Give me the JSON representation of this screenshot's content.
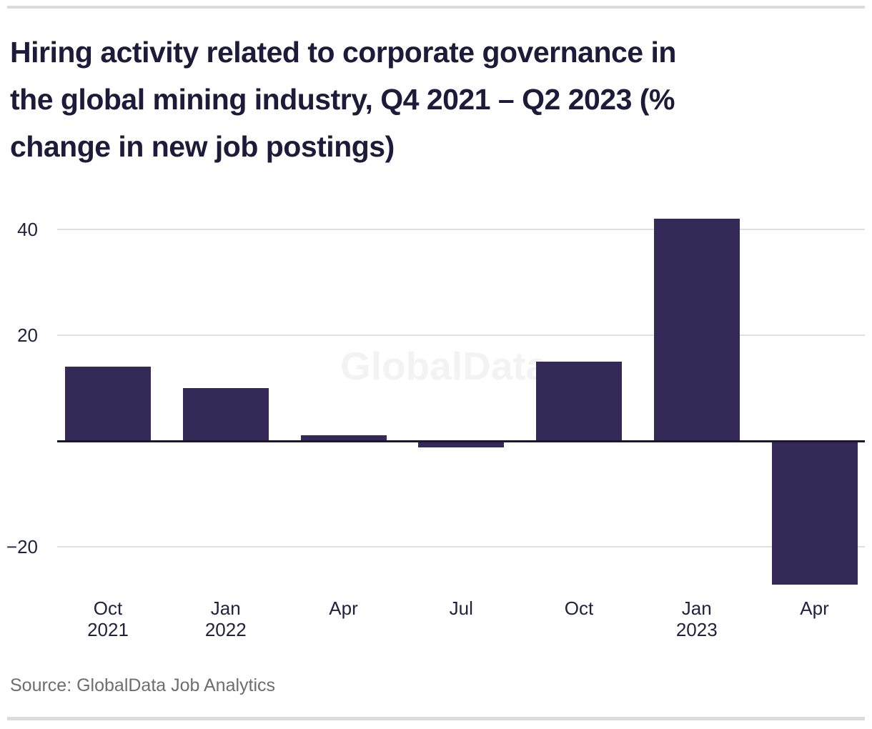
{
  "header": {
    "title_lines": [
      "Hiring activity related to corporate governance in",
      "the global mining industry, Q4 2021 – Q2 2023 (%",
      "change in new job postings)"
    ]
  },
  "watermark": "GlobalData",
  "footer": {
    "source": "Source: GlobalData Job Analytics"
  },
  "colors": {
    "bar": "#352a57",
    "axis_line": "#1a172e",
    "gridline": "#e0e0e0",
    "title_text": "#1e1b3a",
    "axis_text": "#232140",
    "source_text": "#6e6e6e",
    "divider": "#dcdcdc",
    "watermark_text": "#f3f3f3"
  },
  "chart_data": {
    "type": "bar",
    "title": "Hiring activity related to corporate governance in the global mining industry, Q4 2021 – Q2 2023 (% change in new job postings)",
    "categories": [
      "Oct\n2021",
      "Jan\n2022",
      "Apr",
      "Jul",
      "Oct",
      "Jan\n2023",
      "Apr"
    ],
    "values": [
      14,
      10,
      1,
      -1,
      15,
      42,
      -27
    ],
    "yticks": [
      40,
      20,
      -20
    ],
    "ytick_labels": [
      "40",
      "20",
      "−20"
    ],
    "ylim": [
      -30,
      45
    ],
    "xlabel": "",
    "ylabel": "",
    "grid": "horizontal",
    "legend": "none",
    "bar_color": "#352a57",
    "source": "Source: GlobalData Job Analytics",
    "watermark": "GlobalData"
  }
}
